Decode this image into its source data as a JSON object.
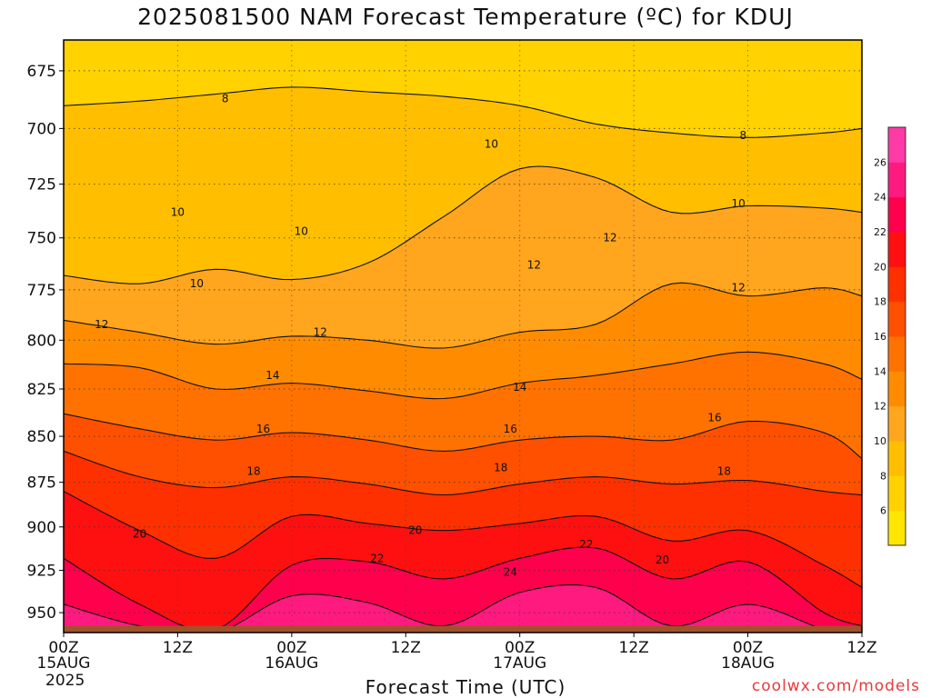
{
  "chart_data": {
    "type": "heatmap",
    "title": "2025081500 NAM Forecast Temperature (ºC) for KDUJ",
    "xlabel": "Forecast Time (UTC)",
    "ylabel": "",
    "credit": "coolwx.com/models",
    "year_label": "2025",
    "x_ticks": [
      {
        "hour": 0,
        "label": "00Z",
        "sub": "15AUG"
      },
      {
        "hour": 12,
        "label": "12Z",
        "sub": ""
      },
      {
        "hour": 24,
        "label": "00Z",
        "sub": "16AUG"
      },
      {
        "hour": 36,
        "label": "12Z",
        "sub": ""
      },
      {
        "hour": 48,
        "label": "00Z",
        "sub": "17AUG"
      },
      {
        "hour": 60,
        "label": "12Z",
        "sub": ""
      },
      {
        "hour": 72,
        "label": "00Z",
        "sub": "18AUG"
      },
      {
        "hour": 84,
        "label": "12Z",
        "sub": ""
      }
    ],
    "xlim": [
      0,
      84
    ],
    "y_ticks": [
      675,
      700,
      725,
      750,
      775,
      800,
      825,
      850,
      875,
      900,
      925,
      950
    ],
    "ylim_hpa": [
      962,
      662
    ],
    "surface_pressure_hpa": 958,
    "colorbar": {
      "ticks": [
        6,
        8,
        10,
        12,
        14,
        16,
        18,
        20,
        22,
        24,
        26
      ],
      "levels": [
        4,
        6,
        8,
        10,
        12,
        14,
        16,
        18,
        20,
        22,
        24,
        26,
        28
      ],
      "colors": [
        "#ffe600",
        "#ffd200",
        "#ffbf00",
        "#ffa51e",
        "#ff8c00",
        "#ff7200",
        "#ff5000",
        "#ff3000",
        "#ff1010",
        "#ff004c",
        "#ff1a80",
        "#ff3aa6"
      ]
    },
    "series": [
      {
        "name": "8",
        "x": [
          0,
          8,
          16,
          24,
          32,
          40,
          48,
          56,
          64,
          72,
          80,
          84
        ],
        "p": [
          690,
          688,
          685,
          682,
          684,
          686,
          690,
          698,
          702,
          704,
          702,
          700
        ]
      },
      {
        "name": "10",
        "x": [
          0,
          8,
          16,
          24,
          32,
          40,
          48,
          56,
          64,
          72,
          80,
          84
        ],
        "p": [
          768,
          772,
          765,
          770,
          762,
          740,
          718,
          722,
          738,
          735,
          736,
          738
        ]
      },
      {
        "name": "12",
        "x": [
          0,
          8,
          16,
          24,
          32,
          40,
          48,
          56,
          64,
          72,
          80,
          84
        ],
        "p": [
          790,
          796,
          802,
          798,
          800,
          804,
          796,
          792,
          772,
          778,
          774,
          778
        ]
      },
      {
        "name": "14",
        "x": [
          0,
          8,
          16,
          24,
          32,
          40,
          48,
          56,
          64,
          72,
          80,
          84
        ],
        "p": [
          812,
          814,
          825,
          822,
          826,
          830,
          822,
          818,
          812,
          806,
          812,
          820
        ]
      },
      {
        "name": "16",
        "x": [
          0,
          8,
          16,
          24,
          32,
          40,
          48,
          56,
          64,
          72,
          80,
          84
        ],
        "p": [
          838,
          846,
          852,
          848,
          852,
          858,
          852,
          850,
          852,
          842,
          848,
          862
        ]
      },
      {
        "name": "18",
        "x": [
          0,
          8,
          16,
          24,
          32,
          40,
          48,
          56,
          64,
          72,
          80,
          84
        ],
        "p": [
          858,
          872,
          878,
          872,
          876,
          882,
          876,
          872,
          876,
          874,
          880,
          882
        ]
      },
      {
        "name": "20",
        "x": [
          0,
          8,
          16,
          24,
          32,
          40,
          48,
          56,
          64,
          72,
          80,
          84
        ],
        "p": [
          880,
          902,
          918,
          894,
          898,
          902,
          898,
          894,
          908,
          902,
          922,
          935
        ]
      },
      {
        "name": "22",
        "x": [
          0,
          8,
          16,
          24,
          32,
          40,
          48,
          56,
          64,
          72,
          80,
          84
        ],
        "p": [
          918,
          945,
          960,
          922,
          920,
          930,
          918,
          912,
          930,
          920,
          950,
          958
        ]
      },
      {
        "name": "24",
        "x": [
          0,
          8,
          16,
          24,
          32,
          40,
          48,
          56,
          64,
          72,
          80,
          84
        ],
        "p": [
          945,
          958,
          962,
          940,
          944,
          958,
          938,
          935,
          958,
          945,
          960,
          962
        ]
      }
    ],
    "contour_labels": [
      {
        "text": "8",
        "hour": 17.0,
        "p": 687
      },
      {
        "text": "8",
        "hour": 71.5,
        "p": 703
      },
      {
        "text": "10",
        "hour": 45.0,
        "p": 707
      },
      {
        "text": "10",
        "hour": 12.0,
        "p": 738
      },
      {
        "text": "10",
        "hour": 25.0,
        "p": 747
      },
      {
        "text": "10",
        "hour": 14.0,
        "p": 772
      },
      {
        "text": "10",
        "hour": 71.0,
        "p": 734
      },
      {
        "text": "12",
        "hour": 49.5,
        "p": 763
      },
      {
        "text": "12",
        "hour": 57.5,
        "p": 750
      },
      {
        "text": "12",
        "hour": 71.0,
        "p": 774
      },
      {
        "text": "12",
        "hour": 4.0,
        "p": 792
      },
      {
        "text": "12",
        "hour": 27.0,
        "p": 796
      },
      {
        "text": "14",
        "hour": 22.0,
        "p": 818
      },
      {
        "text": "14",
        "hour": 48.0,
        "p": 824
      },
      {
        "text": "16",
        "hour": 21.0,
        "p": 846
      },
      {
        "text": "16",
        "hour": 47.0,
        "p": 846
      },
      {
        "text": "16",
        "hour": 68.5,
        "p": 840
      },
      {
        "text": "18",
        "hour": 20.0,
        "p": 869
      },
      {
        "text": "18",
        "hour": 46.0,
        "p": 867
      },
      {
        "text": "18",
        "hour": 69.5,
        "p": 869
      },
      {
        "text": "20",
        "hour": 8.0,
        "p": 904
      },
      {
        "text": "20",
        "hour": 37.0,
        "p": 902
      },
      {
        "text": "20",
        "hour": 63.0,
        "p": 919
      },
      {
        "text": "22",
        "hour": 33.0,
        "p": 918
      },
      {
        "text": "22",
        "hour": 55.0,
        "p": 910
      },
      {
        "text": "24",
        "hour": 47.0,
        "p": 926
      }
    ]
  }
}
